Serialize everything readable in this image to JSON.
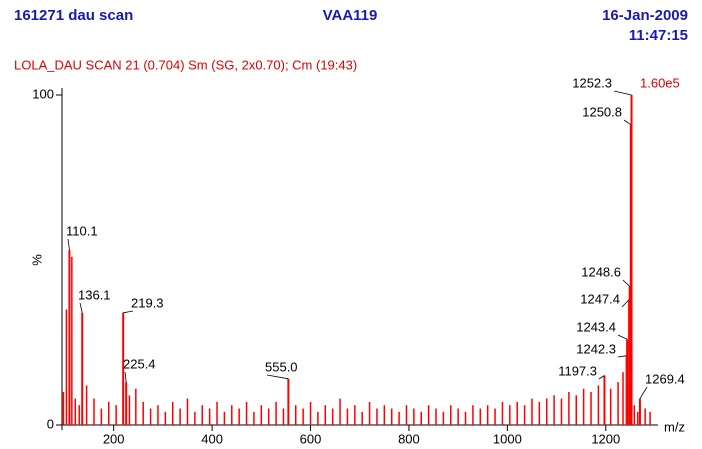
{
  "chart_data": {
    "type": "spectrum",
    "title": "161271 dau scan",
    "sample": "VAA119",
    "date": "16-Jan-2009",
    "time": "11:47:15",
    "subtitle": "LOLA_DAU SCAN  21 (0.704) Sm (SG, 2x0.70); Cm (19:43)",
    "intensity": "1.60e5",
    "y_label": "%",
    "x_label": "m/z",
    "color": "#ff0000",
    "xlim": [
      95,
      1300
    ],
    "xticks": [
      200,
      400,
      600,
      800,
      1000,
      1200
    ],
    "ylim": [
      0,
      100
    ],
    "yticks": [
      0,
      100
    ],
    "peaks": {
      "x": [
        110.1,
        136.1,
        219.3,
        225.4,
        555.0,
        1197.3,
        1242.3,
        1243.4,
        1247.4,
        1248.6,
        1250.8,
        1252.3,
        1269.4
      ],
      "values": [
        53,
        34,
        34,
        13,
        14,
        15,
        21,
        26,
        38,
        42,
        91,
        100,
        8
      ],
      "labels": [
        "110.1",
        "136.1",
        "219.3",
        "225.4",
        "555.0",
        "1197.3",
        "1242.3",
        "1243.4",
        "1247.4",
        "1248.6",
        "1250.8",
        "1252.3",
        "1269.4"
      ]
    },
    "trace": {
      "x": [
        98,
        104,
        115,
        122,
        130,
        145,
        160,
        175,
        190,
        205,
        232,
        245,
        260,
        275,
        290,
        305,
        320,
        335,
        350,
        365,
        380,
        395,
        410,
        425,
        440,
        455,
        470,
        485,
        500,
        515,
        530,
        545,
        570,
        585,
        600,
        615,
        630,
        645,
        660,
        675,
        690,
        705,
        720,
        735,
        750,
        765,
        780,
        795,
        810,
        825,
        840,
        855,
        870,
        885,
        900,
        915,
        930,
        945,
        960,
        975,
        990,
        1005,
        1020,
        1035,
        1050,
        1065,
        1080,
        1095,
        1110,
        1125,
        1140,
        1155,
        1170,
        1185,
        1210,
        1225,
        1235,
        1258,
        1265,
        1280,
        1290
      ],
      "values": [
        10,
        35,
        51,
        8,
        6,
        12,
        8,
        5,
        7,
        6,
        9,
        11,
        7,
        5,
        6,
        4,
        7,
        5,
        8,
        4,
        6,
        5,
        7,
        4,
        6,
        5,
        7,
        4,
        6,
        5,
        7,
        5,
        6,
        5,
        7,
        4,
        6,
        5,
        8,
        5,
        6,
        4,
        7,
        5,
        6,
        5,
        4,
        6,
        5,
        4,
        6,
        5,
        4,
        6,
        5,
        4,
        6,
        5,
        6,
        5,
        7,
        6,
        7,
        6,
        8,
        7,
        8,
        9,
        8,
        10,
        9,
        11,
        10,
        12,
        11,
        13,
        16,
        6,
        4,
        5,
        4
      ]
    }
  }
}
